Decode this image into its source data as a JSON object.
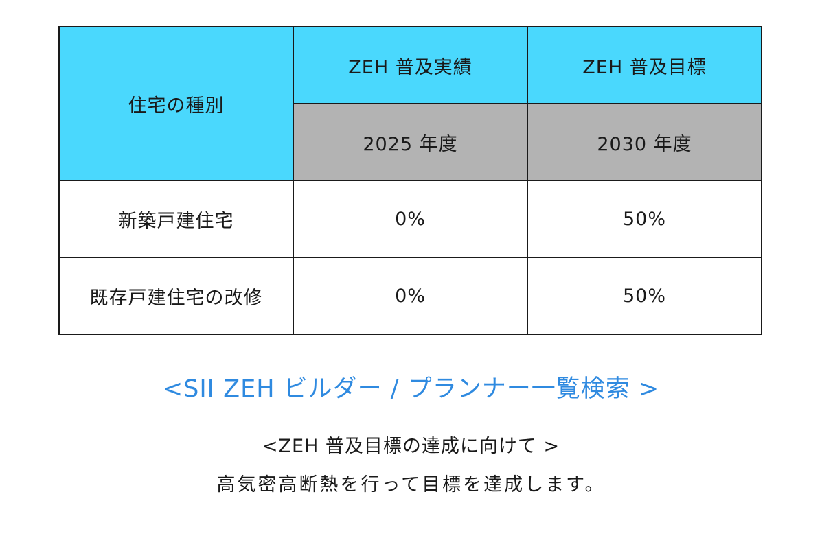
{
  "table": {
    "header": {
      "type_label": "住宅の種別",
      "actual_label": "ZEH 普及実績",
      "target_label": "ZEH 普及目標",
      "actual_year": "2025 年度",
      "target_year": "2030 年度"
    },
    "rows": [
      {
        "type": "新築戸建住宅",
        "actual": "0%",
        "target": "50%"
      },
      {
        "type": "既存戸建住宅の改修",
        "actual": "0%",
        "target": "50%"
      }
    ]
  },
  "link": {
    "label": "<SII ZEH ビルダー / プランナー一覧検索 >"
  },
  "sub_heading": "<ZEH 普及目標の達成に向けて >",
  "body_text": "高気密高断熱を行って目標を達成します。",
  "colors": {
    "header_cyan": "#4ad8fd",
    "year_gray": "#b3b3b3",
    "link_blue": "#2f8ae0"
  }
}
